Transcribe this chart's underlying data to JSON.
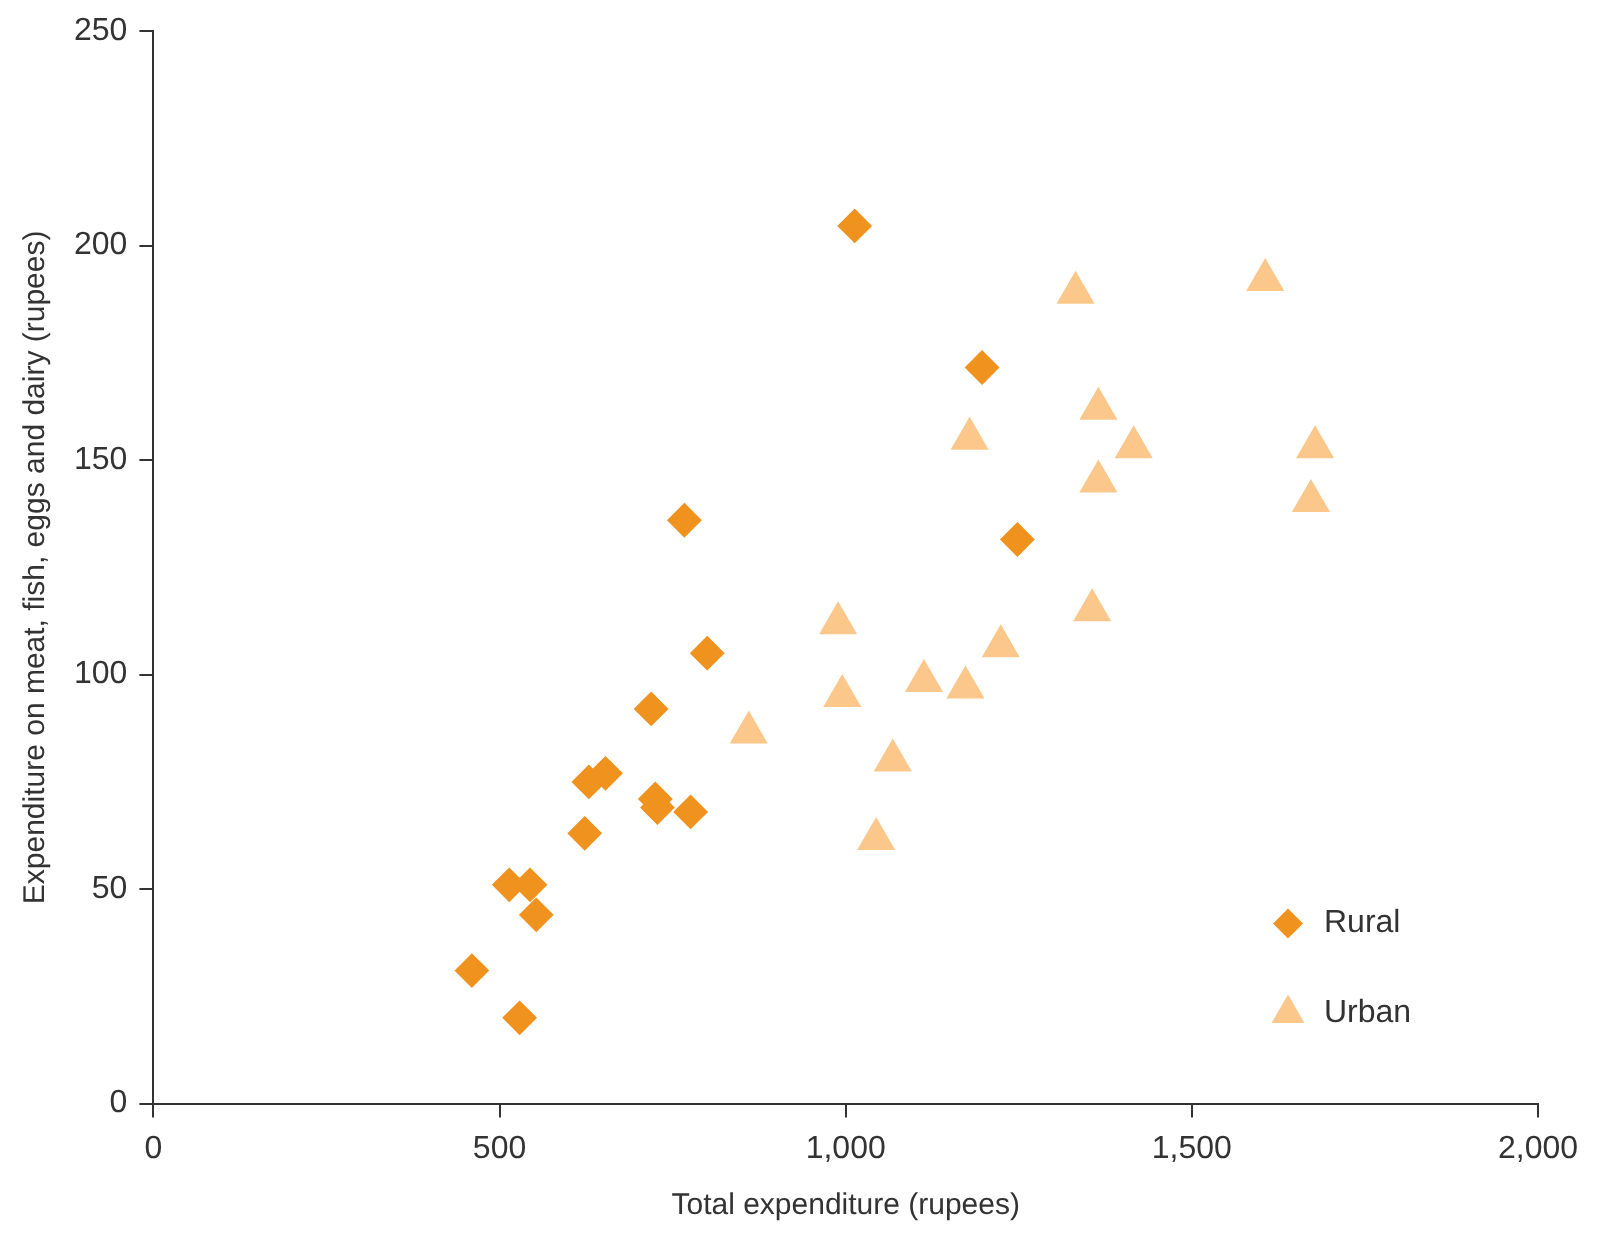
{
  "chart_data": {
    "type": "scatter",
    "xlabel": "Total expenditure (rupees)",
    "ylabel": "Expenditure on meat, fish, eggs and dairy (rupees)",
    "xlim": [
      0,
      2000
    ],
    "xticks": [
      0,
      500,
      {
        "value": 1000,
        "label": "1,000"
      },
      {
        "value": 1500,
        "label": "1,500"
      },
      {
        "value": 2000,
        "label": "2,000"
      }
    ],
    "ylim": [
      0,
      250
    ],
    "yticks": [
      0,
      50,
      100,
      150,
      200,
      250
    ],
    "grid": false,
    "legend": "bottom right",
    "series": [
      {
        "name": "Rural",
        "color": "#f0921e",
        "marker": "diamond",
        "x": [
          1013,
          1197,
          1248,
          767,
          800,
          719,
          653,
          629,
          623,
          725,
          728,
          776,
          514,
          544,
          553,
          460,
          529
        ],
        "values": [
          204.6,
          171.6,
          131.5,
          136,
          105,
          92,
          77,
          75,
          63,
          71,
          69,
          68,
          51,
          51,
          44,
          31,
          20
        ]
      },
      {
        "name": "Urban",
        "color": "#fbc78a",
        "marker": "triangle",
        "x": [
          1606,
          1332,
          1365,
          1179,
          1678,
          1416,
          1365,
          1672,
          1356,
          989,
          1224,
          1113,
          1173,
          995,
          860,
          1068,
          1044
        ],
        "values": [
          192,
          189,
          162,
          155,
          153,
          153,
          145,
          140.5,
          115,
          112,
          106.6,
          98.5,
          97,
          95,
          86.5,
          80,
          61.7
        ]
      }
    ]
  }
}
